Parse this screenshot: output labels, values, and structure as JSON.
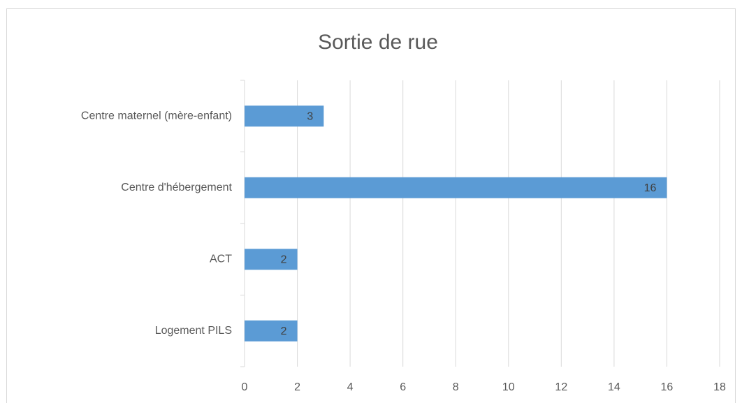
{
  "chart_data": {
    "type": "bar",
    "orientation": "horizontal",
    "title": "Sortie de rue",
    "categories": [
      "Centre maternel (mère-enfant)",
      "Centre d'hébergement",
      "ACT",
      "Logement PILS"
    ],
    "values": [
      3,
      16,
      2,
      2
    ],
    "color": "#5b9bd5",
    "xlim": [
      0,
      18
    ],
    "xticks": [
      0,
      2,
      4,
      6,
      8,
      10,
      12,
      14,
      16,
      18
    ],
    "grid": true
  }
}
